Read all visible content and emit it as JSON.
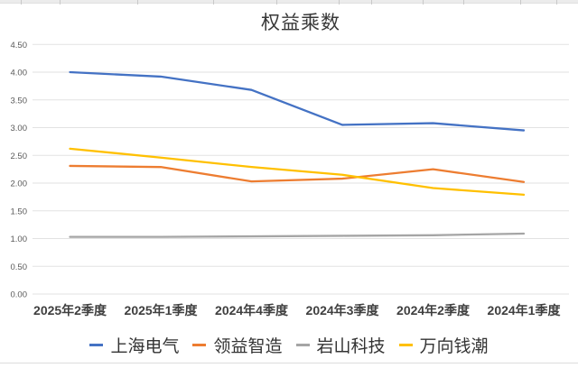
{
  "chart_data": {
    "type": "line",
    "title": "权益乘数",
    "categories": [
      "2025年2季度",
      "2025年1季度",
      "2024年4季度",
      "2024年3季度",
      "2024年2季度",
      "2024年1季度"
    ],
    "series": [
      {
        "name": "上海电气",
        "color": "#4472C4",
        "values": [
          4.0,
          3.92,
          3.68,
          3.05,
          3.08,
          2.95
        ]
      },
      {
        "name": "领益智造",
        "color": "#ED7D31",
        "values": [
          2.31,
          2.29,
          2.03,
          2.08,
          2.25,
          2.02
        ]
      },
      {
        "name": "岩山科技",
        "color": "#A5A5A5",
        "values": [
          1.03,
          1.03,
          1.04,
          1.05,
          1.06,
          1.09
        ]
      },
      {
        "name": "万向钱潮",
        "color": "#FFC000",
        "values": [
          2.62,
          2.46,
          2.29,
          2.15,
          1.91,
          1.79
        ]
      }
    ],
    "y_axis": {
      "min": 0,
      "max": 4.5,
      "step": 0.5,
      "tick_labels": [
        "0.00",
        "0.50",
        "1.00",
        "1.50",
        "2.00",
        "2.50",
        "3.00",
        "3.50",
        "4.00",
        "4.50"
      ],
      "label_color": "#595959"
    },
    "xlabel": "",
    "ylabel": "",
    "grid": true,
    "gridline_color": "#e2e2e2",
    "legend_position": "bottom"
  }
}
